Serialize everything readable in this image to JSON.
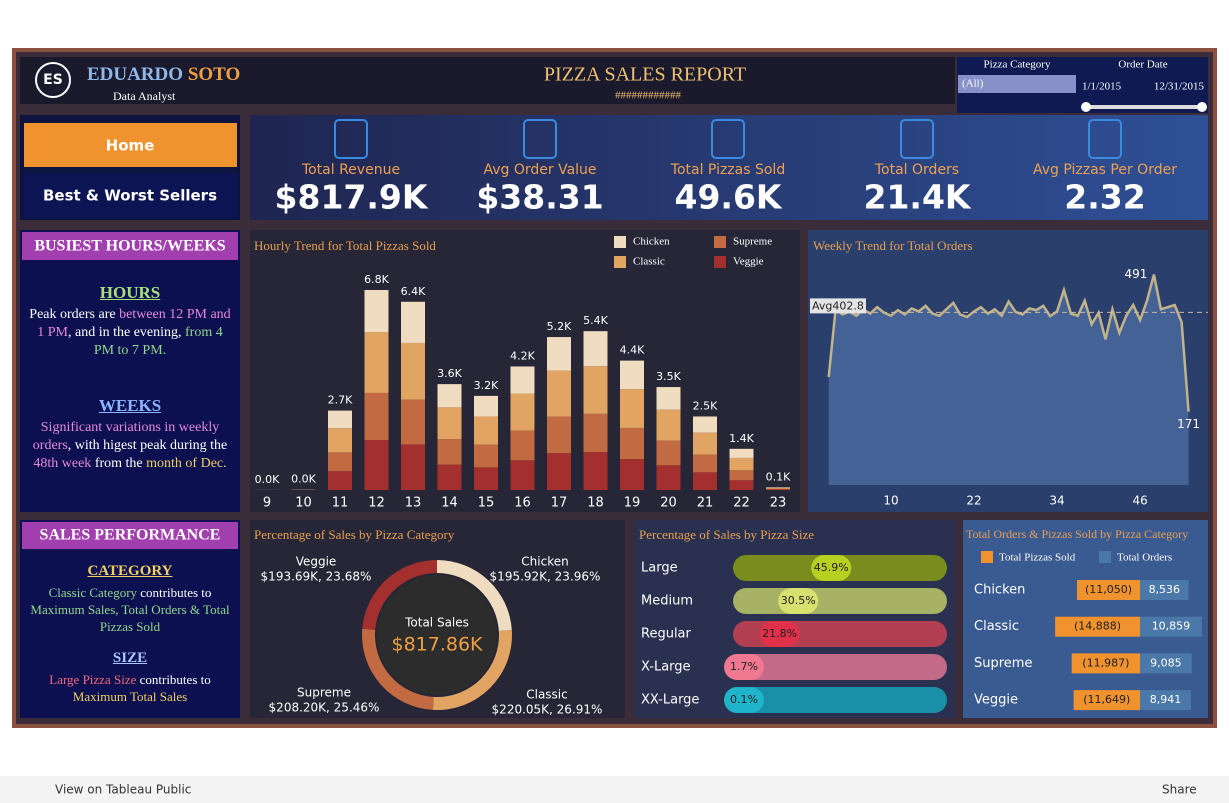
{
  "header": {
    "logo": "ES",
    "first_name": "EDUARDO",
    "last_name": "SOTO",
    "role": "Data Analyst",
    "title": "PIZZA SALES REPORT",
    "subtitle": "############"
  },
  "filters": {
    "category_label": "Pizza Category",
    "category_value": "(All)",
    "date_label": "Order Date",
    "date_start": "1/1/2015",
    "date_end": "12/31/2015"
  },
  "nav": [
    "Home",
    "Best & Worst Sellers"
  ],
  "kpis": [
    {
      "label": "Total Revenue",
      "value": "$817.9K"
    },
    {
      "label": "Avg Order Value",
      "value": "$38.31"
    },
    {
      "label": "Total Pizzas Sold",
      "value": "49.6K"
    },
    {
      "label": "Total Orders",
      "value": "21.4K"
    },
    {
      "label": "Avg Pizzas Per Order",
      "value": "2.32"
    }
  ],
  "notes": [
    {
      "title": "BUSIEST HOURS/WEEKS",
      "sections": [
        {
          "heading": "HOURS",
          "heading_color": "#a8e07a",
          "segments": [
            {
              "text": "Peak orders are ",
              "color": "#ffffff"
            },
            {
              "text": "between 12 PM and 1 PM",
              "color": "#e58ad8"
            },
            {
              "text": ", and in the evening, ",
              "color": "#ffffff"
            },
            {
              "text": "from 4 PM to 7 PM.",
              "color": "#8fd88a"
            }
          ]
        },
        {
          "heading": "WEEKS",
          "heading_color": "#8cb4ff",
          "segments": [
            {
              "text": "Significant variations in weekly orders",
              "color": "#e58ad8"
            },
            {
              "text": ", with higest peak during the ",
              "color": "#ffffff"
            },
            {
              "text": "48th week",
              "color": "#e58ad8"
            },
            {
              "text": " from the ",
              "color": "#ffffff"
            },
            {
              "text": "month of Dec.",
              "color": "#f0d060"
            }
          ]
        }
      ]
    },
    {
      "title": "SALES PERFORMANCE",
      "sections": [
        {
          "heading": "CATEGORY",
          "heading_color": "#f0d060",
          "segments": [
            {
              "text": "Classic Category",
              "color": "#8fd88a"
            },
            {
              "text": " contributes to ",
              "color": "#ffffff"
            },
            {
              "text": "Maximum Sales, Total Orders & Total Pizzas Sold",
              "color": "#8fd88a"
            }
          ]
        },
        {
          "heading": "SIZE",
          "heading_color": "#a8c4ff",
          "segments": [
            {
              "text": "Large Pizza Size",
              "color": "#f06a7a"
            },
            {
              "text": " contributes to ",
              "color": "#ffffff"
            },
            {
              "text": "Maximum Total Sales",
              "color": "#f0d060"
            }
          ]
        }
      ]
    }
  ],
  "chart_data": [
    {
      "type": "stacked_bar",
      "title": "Hourly Trend for Total Pizzas Sold",
      "categories": [
        "9",
        "10",
        "11",
        "12",
        "13",
        "14",
        "15",
        "16",
        "17",
        "18",
        "19",
        "20",
        "21",
        "22",
        "23"
      ],
      "series": [
        {
          "name": "Chicken",
          "color": "#f0dcc0",
          "values": [
            1,
            4,
            600,
            1430,
            1400,
            790,
            700,
            920,
            1140,
            1190,
            970,
            770,
            550,
            310,
            20
          ]
        },
        {
          "name": "Classic",
          "color": "#e2a462",
          "values": [
            2,
            6,
            820,
            2070,
            1930,
            1080,
            960,
            1260,
            1560,
            1620,
            1320,
            1050,
            750,
            420,
            30
          ]
        },
        {
          "name": "Supreme",
          "color": "#c26a42",
          "values": [
            1,
            4,
            640,
            1600,
            1520,
            870,
            770,
            1010,
            1250,
            1300,
            1060,
            840,
            600,
            340,
            20
          ]
        },
        {
          "name": "Veggie",
          "color": "#a3302e",
          "values": [
            0,
            4,
            640,
            1700,
            1550,
            860,
            770,
            1010,
            1250,
            1290,
            1050,
            840,
            600,
            330,
            20
          ]
        }
      ],
      "totals": [
        4,
        18,
        2700,
        6800,
        6400,
        3600,
        3200,
        4200,
        5200,
        5400,
        4400,
        3500,
        2500,
        1400,
        90
      ],
      "total_labels": [
        "0.0K",
        "0.0K",
        "2.7K",
        "6.8K",
        "6.4K",
        "3.6K",
        "3.2K",
        "4.2K",
        "5.2K",
        "5.4K",
        "4.4K",
        "3.5K",
        "2.5K",
        "1.4K",
        "0.1K"
      ]
    },
    {
      "type": "line",
      "title": "Weekly Trend for Total Orders",
      "color": "#c2b48a",
      "area_color": "#5a80b8",
      "x": [
        1,
        2,
        3,
        4,
        5,
        6,
        7,
        8,
        9,
        10,
        11,
        12,
        13,
        14,
        15,
        16,
        17,
        18,
        19,
        20,
        21,
        22,
        23,
        24,
        25,
        26,
        27,
        28,
        29,
        30,
        31,
        32,
        33,
        34,
        35,
        36,
        37,
        38,
        39,
        40,
        41,
        42,
        43,
        44,
        45,
        46,
        47,
        48,
        49,
        50,
        51,
        52,
        53
      ],
      "values": [
        252,
        410,
        398,
        405,
        395,
        410,
        400,
        415,
        402,
        395,
        408,
        398,
        412,
        405,
        418,
        400,
        395,
        410,
        425,
        398,
        392,
        405,
        415,
        400,
        410,
        395,
        428,
        404,
        398,
        412,
        408,
        418,
        394,
        405,
        455,
        400,
        395,
        430,
        375,
        402,
        340,
        410,
        355,
        395,
        420,
        385,
        430,
        491,
        410,
        415,
        420,
        380,
        171
      ],
      "value_labels": [
        null,
        null,
        null,
        null,
        null,
        null,
        null,
        null,
        null,
        null,
        null,
        null,
        null,
        null,
        null,
        null,
        null,
        null,
        null,
        null,
        null,
        null,
        null,
        null,
        null,
        null,
        null,
        null,
        null,
        null,
        null,
        null,
        null,
        null,
        null,
        null,
        null,
        null,
        null,
        null,
        null,
        null,
        null,
        null,
        null,
        null,
        null,
        "491",
        null,
        null,
        null,
        null,
        "171"
      ],
      "average": {
        "value": 402.8,
        "label": "Avg402.8"
      },
      "xlim": [
        -1.7,
        56.1
      ],
      "ylim": [
        0,
        525
      ],
      "xticks": [
        10,
        22,
        34,
        46
      ]
    },
    {
      "type": "donut",
      "title": "Percentage of Sales by Pizza Category",
      "center_label": "Total Sales",
      "center_value": "$817.86K",
      "categories": [
        "Chicken",
        "Classic",
        "Supreme",
        "Veggie"
      ],
      "values": [
        23.96,
        26.91,
        25.46,
        23.68
      ],
      "value_labels": [
        "$195.92K, 23.96%",
        "$220.05K, 26.91%",
        "$208.20K, 25.46%",
        "$193.69K, 23.68%"
      ],
      "colors": [
        "#f0dcc0",
        "#e2a462",
        "#c26a42",
        "#a3302e"
      ]
    },
    {
      "type": "bar",
      "title": "Percentage of Sales by Pizza Size",
      "categories": [
        "Large",
        "Medium",
        "Regular",
        "X-Large",
        "XX-Large"
      ],
      "values": [
        45.9,
        30.5,
        21.8,
        1.7,
        0.1
      ],
      "value_labels": [
        "45.9%",
        "30.5%",
        "21.8%",
        "1.7%",
        "0.1%"
      ],
      "xlim": [
        0,
        100
      ],
      "colors": [
        "#7a8c1e",
        "#a8b266",
        "#b23e52",
        "#c26a88",
        "#1a8fa8"
      ],
      "highlight_colors": [
        "#b8d020",
        "#d8e070",
        "#e0304a",
        "#f07890",
        "#20b4cc"
      ]
    },
    {
      "type": "diverging_bar",
      "title": "Total Orders & Pizzas Sold by Pizza Category",
      "categories": [
        "Chicken",
        "Classic",
        "Supreme",
        "Veggie"
      ],
      "series": [
        {
          "name": "Total Pizzas Sold",
          "color": "#f0922e",
          "values": [
            11050,
            14888,
            11987,
            11649
          ],
          "value_labels": [
            "(11,050)",
            "(14,888)",
            "(11,987)",
            "(11,649)"
          ]
        },
        {
          "name": "Total Orders",
          "color": "#4a78a8",
          "values": [
            8536,
            10859,
            9085,
            8941
          ],
          "value_labels": [
            "8,536",
            "10,859",
            "9,085",
            "8,941"
          ]
        }
      ]
    }
  ],
  "toolbar": {
    "view": "View on Tableau Public",
    "share": "Share"
  }
}
